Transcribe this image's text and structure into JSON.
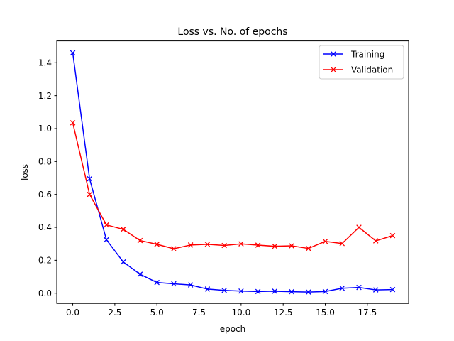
{
  "chart_data": {
    "type": "line",
    "title": "Loss vs. No. of epochs",
    "xlabel": "epoch",
    "ylabel": "loss",
    "xlim": [
      -0.95,
      19.95
    ],
    "ylim": [
      -0.0625,
      1.5325
    ],
    "x_ticks": [
      0.0,
      2.5,
      5.0,
      7.5,
      10.0,
      12.5,
      15.0,
      17.5
    ],
    "x_tick_labels": [
      "0.0",
      "2.5",
      "5.0",
      "7.5",
      "10.0",
      "12.5",
      "15.0",
      "17.5"
    ],
    "y_ticks": [
      0.0,
      0.2,
      0.4,
      0.6,
      0.8,
      1.0,
      1.2,
      1.4
    ],
    "y_tick_labels": [
      "0.0",
      "0.2",
      "0.4",
      "0.6",
      "0.8",
      "1.0",
      "1.2",
      "1.4"
    ],
    "grid": false,
    "legend_position": "top-right",
    "series": [
      {
        "name": "Training",
        "color": "#0000ff",
        "marker": "x",
        "x": [
          0,
          1,
          2,
          3,
          4,
          5,
          6,
          7,
          8,
          9,
          10,
          11,
          12,
          13,
          14,
          15,
          16,
          17,
          18,
          19
        ],
        "y": [
          1.46,
          0.695,
          0.325,
          0.19,
          0.115,
          0.065,
          0.057,
          0.05,
          0.025,
          0.017,
          0.013,
          0.01,
          0.012,
          0.009,
          0.007,
          0.01,
          0.03,
          0.035,
          0.02,
          0.022
        ]
      },
      {
        "name": "Validation",
        "color": "#ff0000",
        "marker": "x",
        "x": [
          0,
          1,
          2,
          3,
          4,
          5,
          6,
          7,
          8,
          9,
          10,
          11,
          12,
          13,
          14,
          15,
          16,
          17,
          18,
          19
        ],
        "y": [
          1.035,
          0.6,
          0.415,
          0.388,
          0.32,
          0.297,
          0.27,
          0.293,
          0.297,
          0.29,
          0.3,
          0.292,
          0.285,
          0.288,
          0.272,
          0.315,
          0.302,
          0.4,
          0.318,
          0.35
        ]
      }
    ]
  }
}
